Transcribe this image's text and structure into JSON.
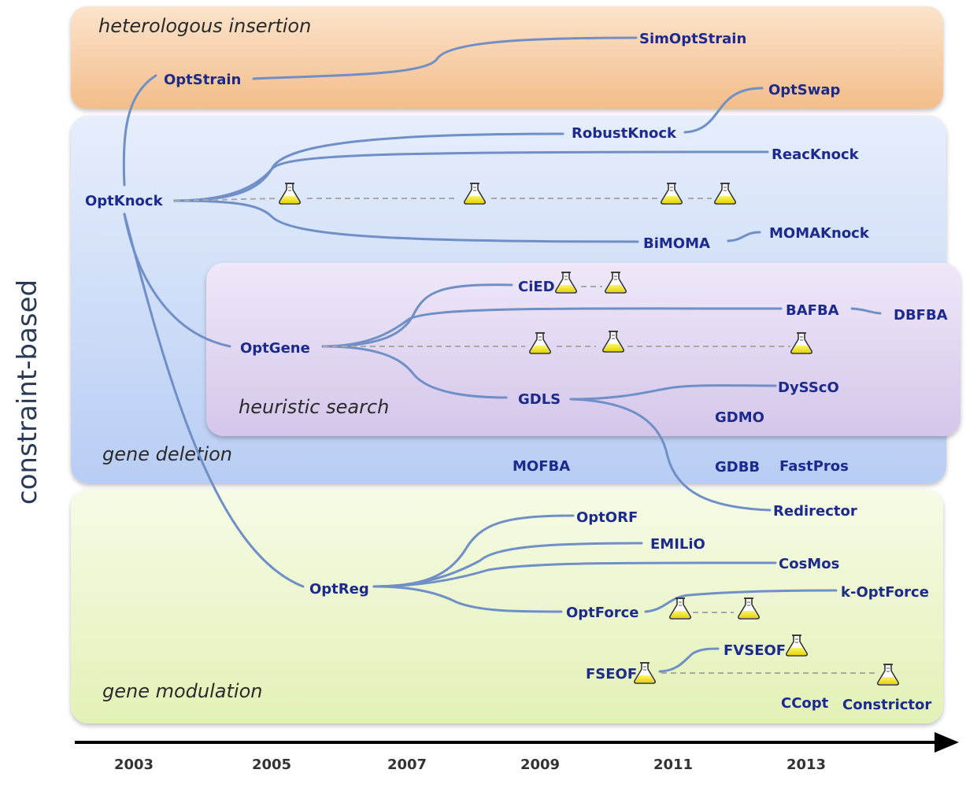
{
  "side_label": "constraint-based",
  "regions": {
    "heterologous": "heterologous insertion",
    "deletion": "gene deletion",
    "heuristic": "heuristic search",
    "modulation": "gene modulation"
  },
  "years": [
    "2003",
    "2005",
    "2007",
    "2009",
    "2011",
    "2013"
  ],
  "methods": {
    "optstrain": "OptStrain",
    "simoptstrain": "SimOptStrain",
    "optswap": "OptSwap",
    "robustknock": "RobustKnock",
    "reacknock": "ReacKnock",
    "optknock": "OptKnock",
    "bimoma": "BiMOMA",
    "momaknock": "MOMAKnock",
    "cied": "CiED",
    "bafba": "BAFBA",
    "dbfba": "DBFBA",
    "optgene": "OptGene",
    "dyssco": "DySScO",
    "gdls": "GDLS",
    "gdmo": "GDMO",
    "mofba": "MOFBA",
    "gdbb": "GDBB",
    "fastpros": "FastPros",
    "redirector": "Redirector",
    "optorf": "OptORF",
    "emilio": "EMILiO",
    "cosmos": "CosMos",
    "optreg": "OptReg",
    "koptforce": "k-OptForce",
    "optforce": "OptForce",
    "fvseof": "FVSEOF",
    "fseof": "FSEOF",
    "ccopt": "CCopt",
    "constrictor": "Constrictor"
  },
  "colors": {
    "heterologous": "#f5c9a0",
    "deletion": "#c7d7f7",
    "heuristic": "#d9cdee",
    "modulation": "#eaf5c4",
    "link": "#6f8fc6",
    "text": "#1c2a8c",
    "flask": "#f3e61c"
  },
  "icons": {
    "experimental": "flask-icon",
    "arrow": "arrow-right-icon"
  }
}
